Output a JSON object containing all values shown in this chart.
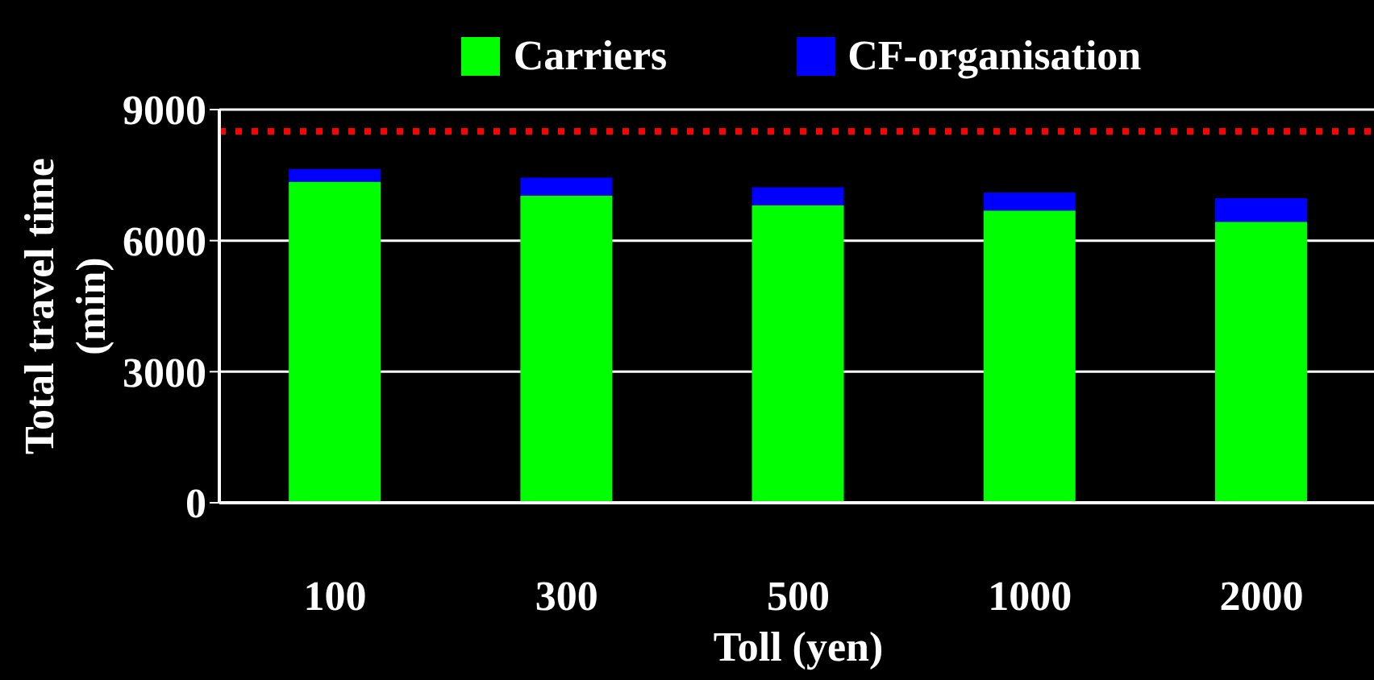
{
  "chart_data": {
    "type": "bar",
    "stacked": true,
    "categories": [
      "100",
      "300",
      "500",
      "1000",
      "2000"
    ],
    "series": [
      {
        "name": "Carriers",
        "color": "#00ff00",
        "values": [
          7350,
          7030,
          6810,
          6690,
          6430
        ]
      },
      {
        "name": "CF-organisation",
        "color": "#0000ff",
        "values": [
          290,
          410,
          410,
          410,
          540
        ]
      }
    ],
    "xlabel": "Toll (yen)",
    "ylabel": "Total travel time\n(min)",
    "ylim": [
      0,
      9000
    ],
    "yticks": [
      0,
      3000,
      6000,
      9000
    ],
    "grid": "y",
    "legend": "top",
    "ref_lines": [
      {
        "axis": "y",
        "value": 8500,
        "color": "#ff0000",
        "line_style": "dotted"
      }
    ]
  }
}
